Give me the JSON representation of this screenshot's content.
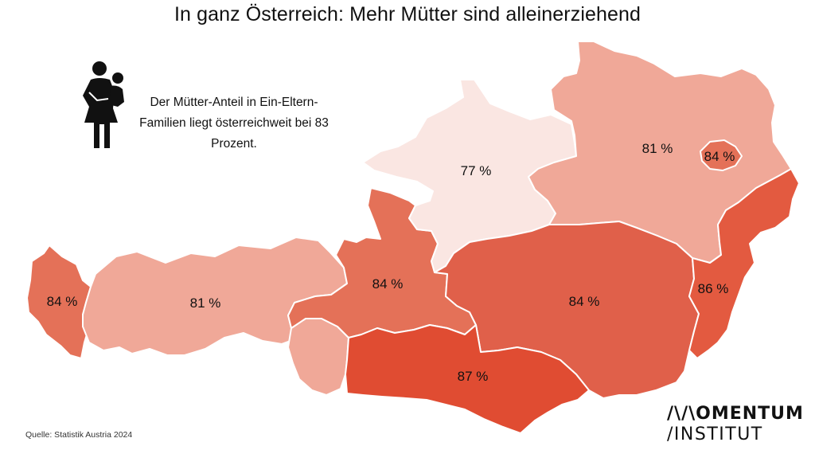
{
  "title": "In ganz Österreich: Mehr Mütter sind alleinerziehend",
  "info": {
    "text": "Der Mütter-Anteil in Ein-Eltern-Familien liegt österreichweit bei 83 Prozent.",
    "icon": "mother-with-child-icon"
  },
  "map_data": {
    "type": "choropleth",
    "regions": [
      {
        "value": 84,
        "label": "84 %",
        "color": "#e47158"
      },
      {
        "value": 81,
        "label": "81 %",
        "color": "#f0a898"
      },
      {
        "value": 84,
        "label": "84 %",
        "color": "#e47158"
      },
      {
        "value": 77,
        "label": "77 %",
        "color": "#fae6e2"
      },
      {
        "value": 81,
        "label": "81 %",
        "color": "#f0a898"
      },
      {
        "value": 84,
        "label": "84 %",
        "color": "#e47158"
      },
      {
        "value": 84,
        "label": "84 %",
        "color": "#e0604a"
      },
      {
        "value": 86,
        "label": "86 %",
        "color": "#e35a40"
      },
      {
        "value": 87,
        "label": "87 %",
        "color": "#e04c32"
      }
    ]
  },
  "source": "Quelle: Statistik Austria 2024",
  "logo": {
    "line1": "/\\/\\OMENTUM",
    "line2": "/INSTITUT"
  }
}
